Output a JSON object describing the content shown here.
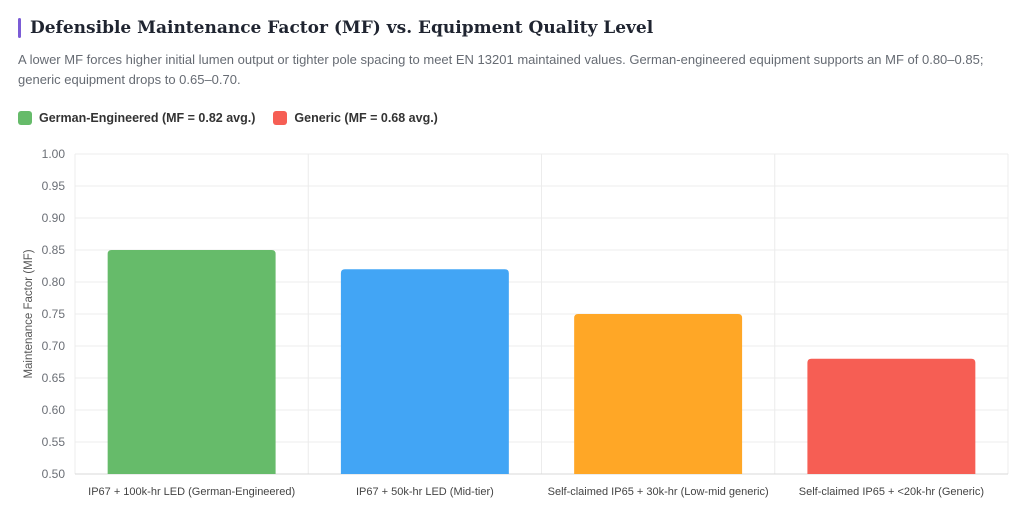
{
  "title": "Defensible Maintenance Factor (MF) vs. Equipment Quality Level",
  "subtitle": "A lower MF forces higher initial lumen output or tighter pole spacing to meet EN 13201 maintained values. German-engineered equipment supports an MF of 0.80–0.85; generic equipment drops to 0.65–0.70.",
  "legend": [
    {
      "label": "German-Engineered (MF = 0.82 avg.)",
      "color": "#66bb6a"
    },
    {
      "label": "Generic (MF = 0.68 avg.)",
      "color": "#f65e54"
    }
  ],
  "chart_data": {
    "type": "bar",
    "categories": [
      "IP67 + 100k-hr LED (German-Engineered)",
      "IP67 + 50k-hr LED (Mid-tier)",
      "Self-claimed IP65 + 30k-hr (Low-mid generic)",
      "Self-claimed IP65 + <20k-hr (Generic)"
    ],
    "values": [
      0.85,
      0.82,
      0.75,
      0.68
    ],
    "colors": [
      "#66bb6a",
      "#42a5f5",
      "#ffa726",
      "#f65e54"
    ],
    "xlabel": "",
    "ylabel": "Maintenance Factor (MF)",
    "ylim": [
      0.5,
      1.0
    ],
    "yticks": [
      "0.50",
      "0.55",
      "0.60",
      "0.65",
      "0.70",
      "0.75",
      "0.80",
      "0.85",
      "0.90",
      "0.95",
      "1.00"
    ],
    "grid": true,
    "legend_position": "top-left"
  }
}
